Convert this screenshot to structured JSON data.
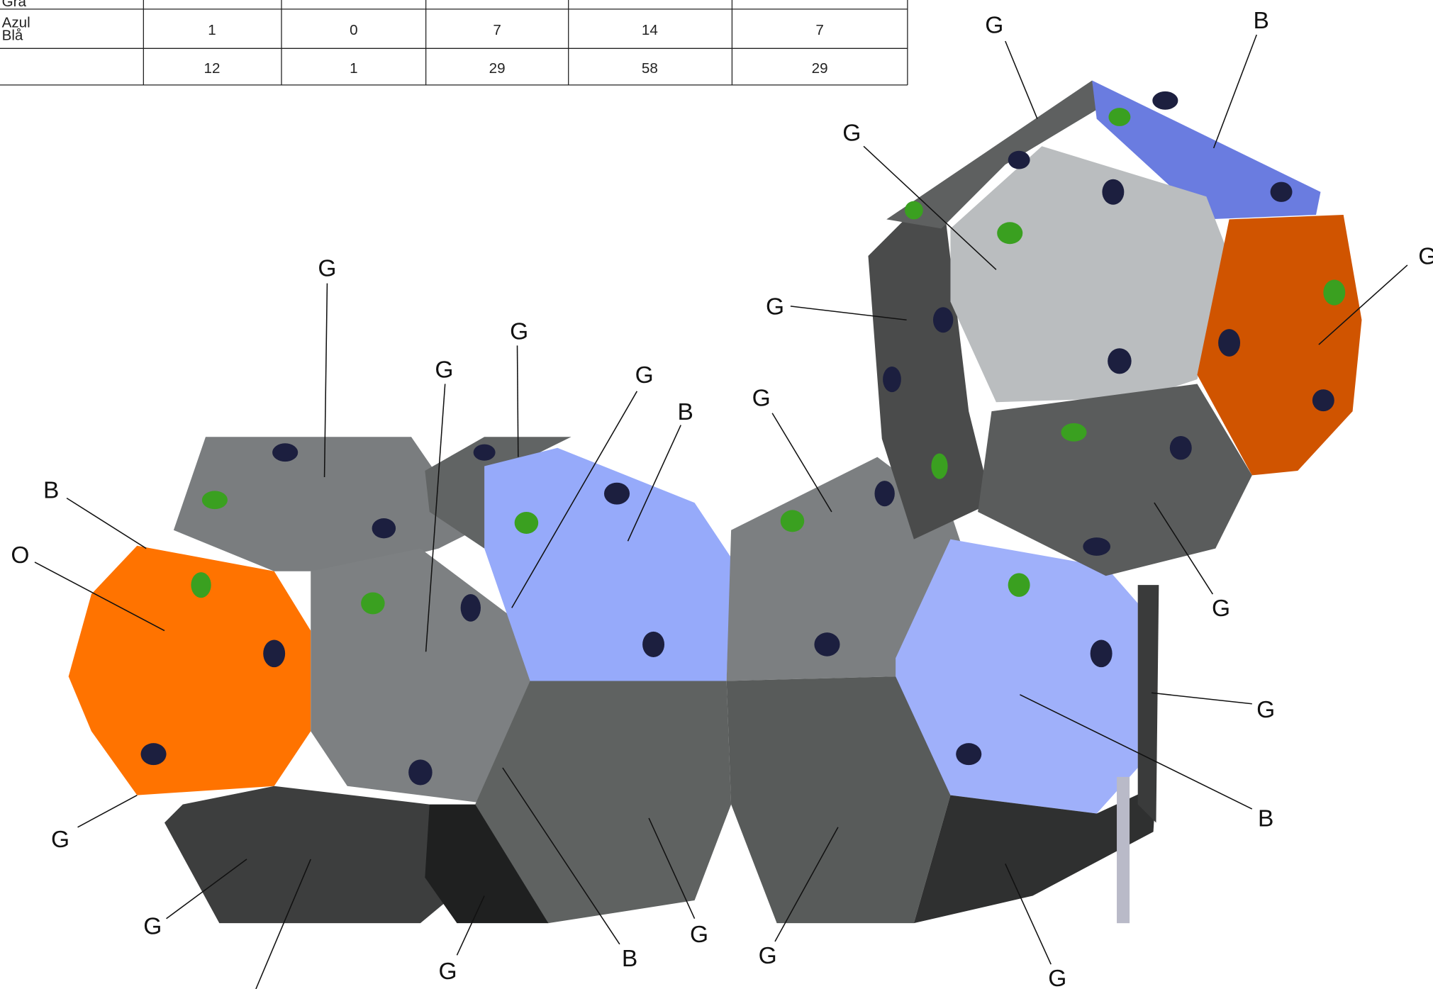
{
  "table": {
    "rows": [
      {
        "label": [
          "Grå"
        ],
        "cells": []
      },
      {
        "label": [
          "Azul",
          "Blå"
        ],
        "cells": [
          "1",
          "0",
          "7",
          "14",
          "7"
        ]
      },
      {
        "label": [],
        "cells": [
          "12",
          "1",
          "29",
          "58",
          "29"
        ]
      }
    ]
  },
  "callouts": [
    "G",
    "B",
    "G",
    "G",
    "G",
    "G",
    "G",
    "G",
    "G",
    "B",
    "G",
    "B",
    "O",
    "G",
    "G",
    "B",
    "G",
    "G",
    "G",
    "B",
    "G",
    "G",
    "G"
  ]
}
